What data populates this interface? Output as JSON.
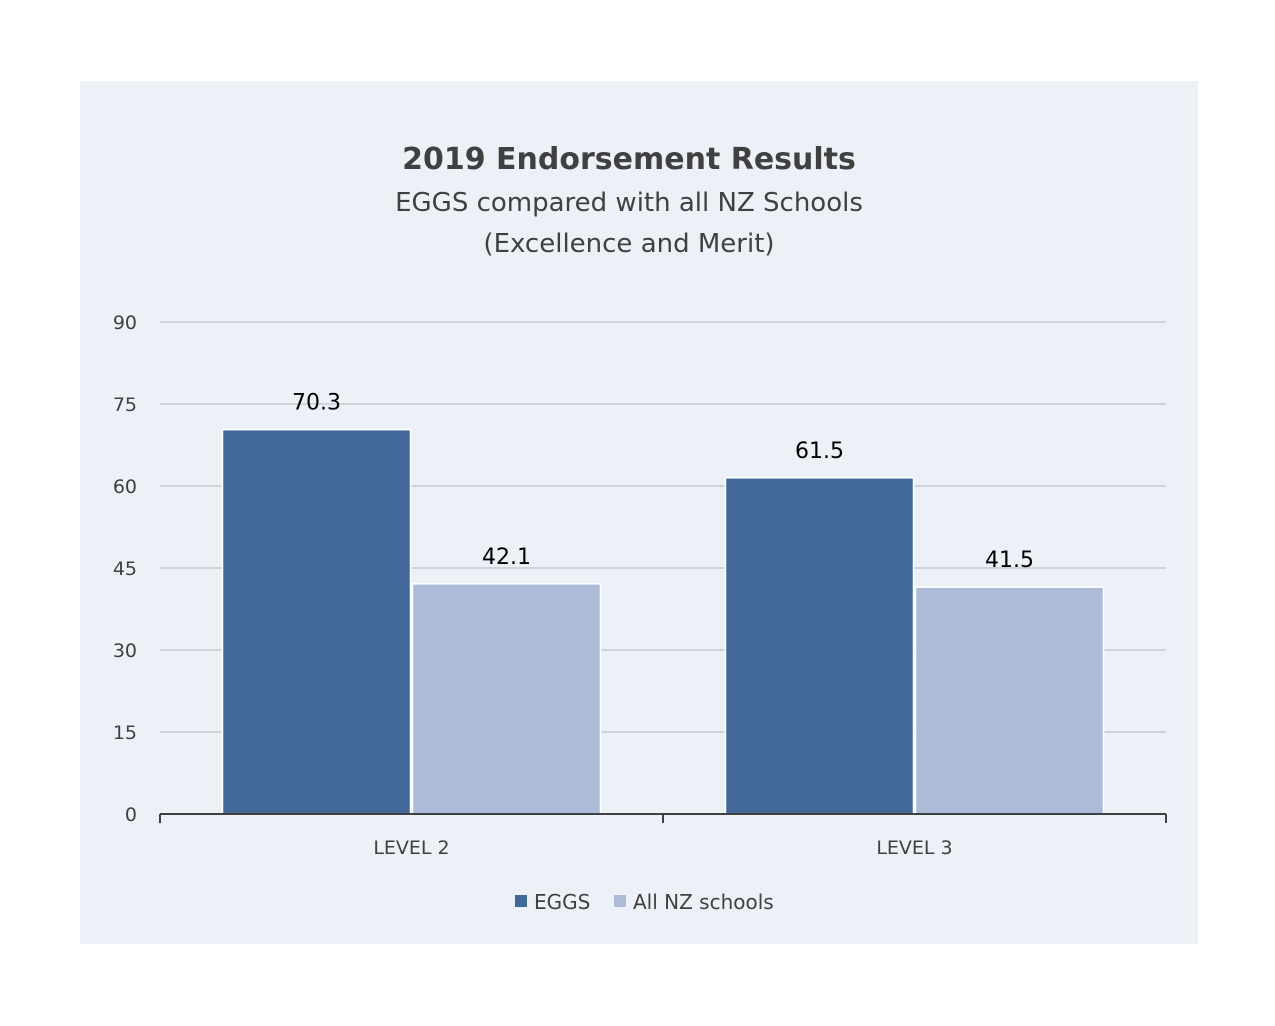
{
  "chart_data": {
    "type": "bar",
    "title": "2019 Endorsement Results",
    "subtitle_lines": [
      "EGGS compared with all NZ Schools",
      "(Excellence and Merit)"
    ],
    "categories": [
      "LEVEL 2",
      "LEVEL 3"
    ],
    "series": [
      {
        "name": "EGGS",
        "values": [
          70.3,
          61.5
        ],
        "color": "#416899"
      },
      {
        "name": "All NZ schools",
        "values": [
          42.1,
          41.5
        ],
        "color": "#abbbd8"
      }
    ],
    "ylim": [
      0,
      90
    ],
    "yticks": [
      0,
      15,
      30,
      45,
      60,
      75,
      90
    ],
    "grid": true,
    "legend_position": "bottom",
    "colors": {
      "panel_background": "#ecf1f8",
      "gridline": "#d0d4da",
      "axis": "#404040"
    }
  }
}
